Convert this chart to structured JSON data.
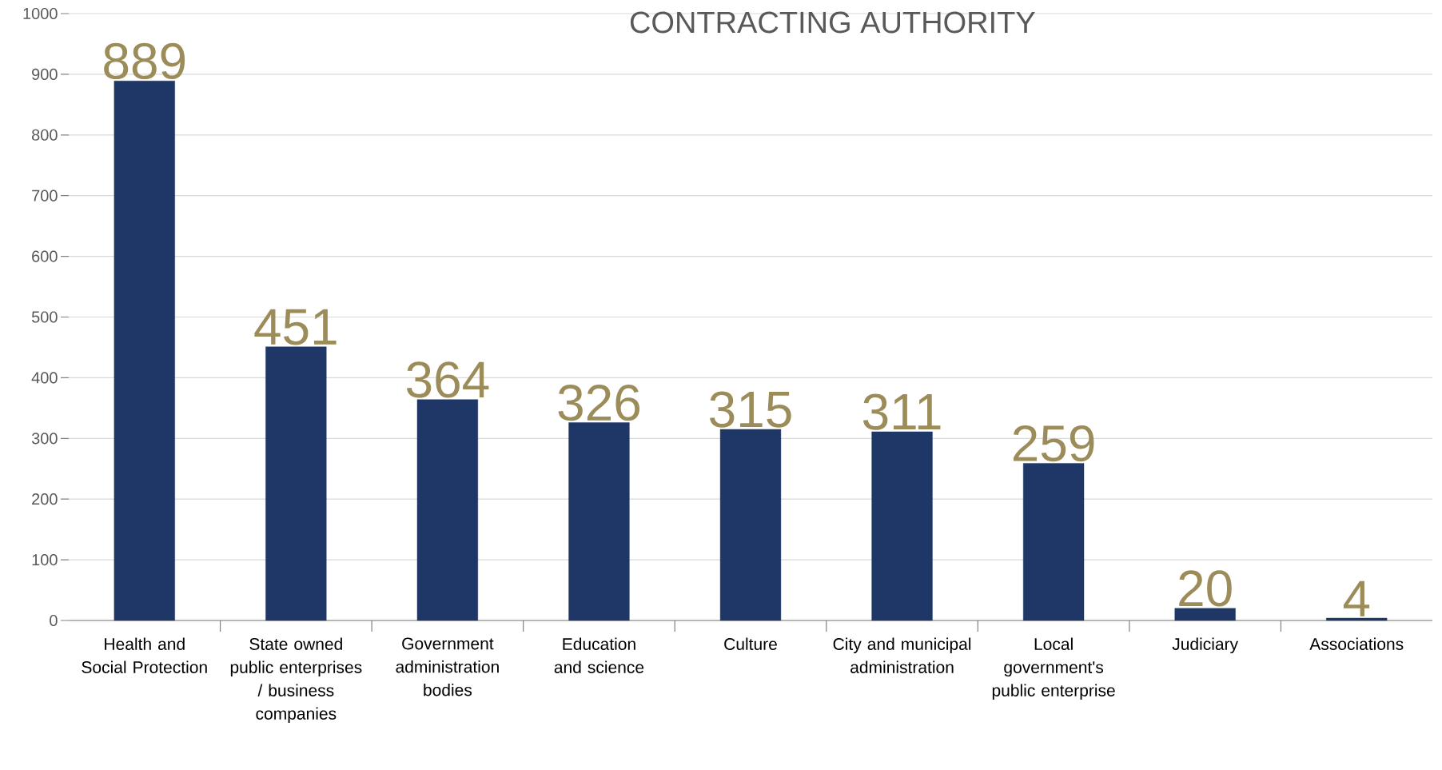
{
  "chart_data": {
    "type": "bar",
    "title": "CONTRACTING AUTHORITY",
    "categories": [
      "Health and Social Protection",
      "State owned public enterprises / business companies",
      "Government administration bodies",
      "Education and science",
      "Culture",
      "City and municipal administration",
      "Local government's public enterprise",
      "Judiciary",
      "Associations"
    ],
    "values": [
      889,
      451,
      364,
      326,
      315,
      311,
      259,
      20,
      4
    ],
    "color": "#1f3766",
    "ylim": [
      0,
      1000
    ],
    "yticks": [
      0,
      100,
      200,
      300,
      400,
      500,
      600,
      700,
      800,
      900,
      1000
    ],
    "grid": "y",
    "data_labels": true
  }
}
